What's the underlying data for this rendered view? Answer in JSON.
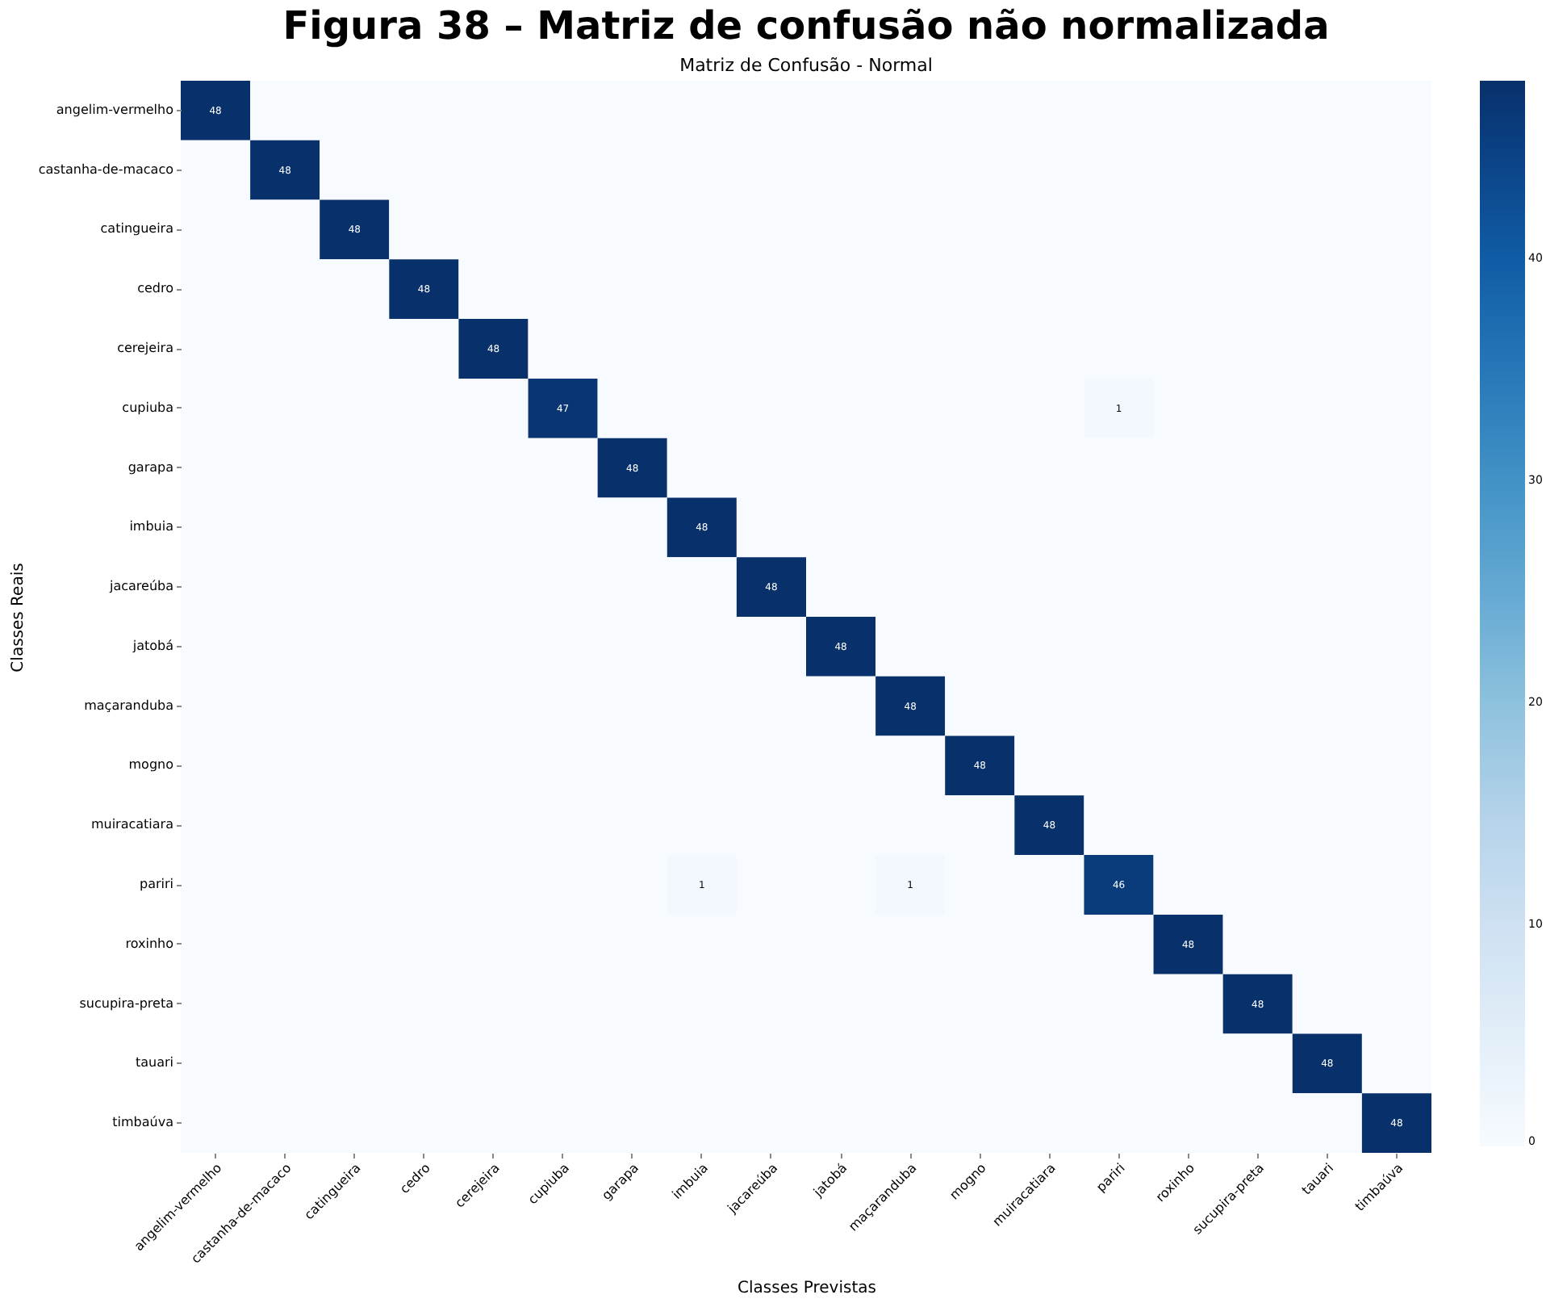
{
  "chart_data": {
    "type": "heatmap",
    "title": "Figura 38 – Matriz de confusão não normalizada",
    "subtitle": "Matriz de Confusão - Normal",
    "xlabel": "Classes Previstas",
    "ylabel": "Classes Reais",
    "categories": [
      "angelim-vermelho",
      "castanha-de-macaco",
      "catingueira",
      "cedro",
      "cerejeira",
      "cupiuba",
      "garapa",
      "imbuia",
      "jacareúba",
      "jatobá",
      "maçaranduba",
      "mogno",
      "muiracatiara",
      "pariri",
      "roxinho",
      "sucupira-preta",
      "tauari",
      "timbaúva"
    ],
    "y_categories": [
      "angelim-vermelho",
      "castanha-de-macaco",
      "catingueira",
      "cedro",
      "cerejeira",
      "cupiuba",
      "garapa",
      "imbuia",
      "jacareúba",
      "jatobá",
      "maçaranduba",
      "mogno",
      "muiracatiara",
      "pariri",
      "roxinho",
      "sucupira-preta",
      "tauari",
      "timbaúva"
    ],
    "cells": [
      [
        48,
        0,
        0,
        0,
        0,
        0,
        0,
        0,
        0,
        0,
        0,
        0,
        0,
        0,
        0,
        0,
        0,
        0
      ],
      [
        0,
        48,
        0,
        0,
        0,
        0,
        0,
        0,
        0,
        0,
        0,
        0,
        0,
        0,
        0,
        0,
        0,
        0
      ],
      [
        0,
        0,
        48,
        0,
        0,
        0,
        0,
        0,
        0,
        0,
        0,
        0,
        0,
        0,
        0,
        0,
        0,
        0
      ],
      [
        0,
        0,
        0,
        48,
        0,
        0,
        0,
        0,
        0,
        0,
        0,
        0,
        0,
        0,
        0,
        0,
        0,
        0
      ],
      [
        0,
        0,
        0,
        0,
        48,
        0,
        0,
        0,
        0,
        0,
        0,
        0,
        0,
        0,
        0,
        0,
        0,
        0
      ],
      [
        0,
        0,
        0,
        0,
        0,
        47,
        0,
        0,
        0,
        0,
        0,
        0,
        0,
        1,
        0,
        0,
        0,
        0
      ],
      [
        0,
        0,
        0,
        0,
        0,
        0,
        48,
        0,
        0,
        0,
        0,
        0,
        0,
        0,
        0,
        0,
        0,
        0
      ],
      [
        0,
        0,
        0,
        0,
        0,
        0,
        0,
        48,
        0,
        0,
        0,
        0,
        0,
        0,
        0,
        0,
        0,
        0
      ],
      [
        0,
        0,
        0,
        0,
        0,
        0,
        0,
        0,
        48,
        0,
        0,
        0,
        0,
        0,
        0,
        0,
        0,
        0
      ],
      [
        0,
        0,
        0,
        0,
        0,
        0,
        0,
        0,
        0,
        48,
        0,
        0,
        0,
        0,
        0,
        0,
        0,
        0
      ],
      [
        0,
        0,
        0,
        0,
        0,
        0,
        0,
        0,
        0,
        0,
        48,
        0,
        0,
        0,
        0,
        0,
        0,
        0
      ],
      [
        0,
        0,
        0,
        0,
        0,
        0,
        0,
        0,
        0,
        0,
        0,
        48,
        0,
        0,
        0,
        0,
        0,
        0
      ],
      [
        0,
        0,
        0,
        0,
        0,
        0,
        0,
        0,
        0,
        0,
        0,
        0,
        48,
        0,
        0,
        0,
        0,
        0
      ],
      [
        0,
        0,
        0,
        0,
        0,
        0,
        0,
        1,
        0,
        0,
        1,
        0,
        0,
        46,
        0,
        0,
        0,
        0
      ],
      [
        0,
        0,
        0,
        0,
        0,
        0,
        0,
        0,
        0,
        0,
        0,
        0,
        0,
        0,
        48,
        0,
        0,
        0
      ],
      [
        0,
        0,
        0,
        0,
        0,
        0,
        0,
        0,
        0,
        0,
        0,
        0,
        0,
        0,
        0,
        48,
        0,
        0
      ],
      [
        0,
        0,
        0,
        0,
        0,
        0,
        0,
        0,
        0,
        0,
        0,
        0,
        0,
        0,
        0,
        0,
        48,
        0
      ],
      [
        0,
        0,
        0,
        0,
        0,
        0,
        0,
        0,
        0,
        0,
        0,
        0,
        0,
        0,
        0,
        0,
        0,
        48
      ]
    ],
    "cell_labels": [
      [
        "48",
        null,
        null,
        null,
        null,
        null,
        null,
        null,
        null,
        null,
        null,
        null,
        null,
        null,
        null,
        null,
        null,
        null
      ],
      [
        null,
        "48",
        null,
        null,
        null,
        null,
        null,
        null,
        null,
        null,
        null,
        null,
        null,
        null,
        null,
        null,
        null,
        null
      ],
      [
        null,
        null,
        "48",
        null,
        null,
        null,
        null,
        null,
        null,
        null,
        null,
        null,
        null,
        null,
        null,
        null,
        null,
        null
      ],
      [
        null,
        null,
        null,
        "48",
        null,
        null,
        null,
        null,
        null,
        null,
        null,
        null,
        null,
        null,
        null,
        null,
        null,
        null
      ],
      [
        null,
        null,
        null,
        null,
        "48",
        null,
        null,
        null,
        null,
        null,
        null,
        null,
        null,
        null,
        null,
        null,
        null,
        null
      ],
      [
        null,
        null,
        null,
        null,
        null,
        "47",
        null,
        null,
        null,
        null,
        null,
        null,
        null,
        "1",
        null,
        null,
        null,
        null
      ],
      [
        null,
        null,
        null,
        null,
        null,
        null,
        "48",
        null,
        null,
        null,
        null,
        null,
        null,
        null,
        null,
        null,
        null,
        null
      ],
      [
        null,
        null,
        null,
        null,
        null,
        null,
        null,
        "48",
        null,
        null,
        null,
        null,
        null,
        null,
        null,
        null,
        null,
        null
      ],
      [
        null,
        null,
        null,
        null,
        null,
        null,
        null,
        null,
        "48",
        null,
        null,
        null,
        null,
        null,
        null,
        null,
        null,
        null
      ],
      [
        null,
        null,
        null,
        null,
        null,
        null,
        null,
        null,
        null,
        "48",
        null,
        null,
        null,
        null,
        null,
        null,
        null,
        null
      ],
      [
        null,
        null,
        null,
        null,
        null,
        null,
        null,
        null,
        null,
        null,
        "48",
        null,
        null,
        null,
        null,
        null,
        null,
        null
      ],
      [
        null,
        null,
        null,
        null,
        null,
        null,
        null,
        null,
        null,
        null,
        null,
        "48",
        null,
        null,
        null,
        null,
        null,
        null
      ],
      [
        null,
        null,
        null,
        null,
        null,
        null,
        null,
        null,
        null,
        null,
        null,
        null,
        "48",
        null,
        null,
        null,
        null,
        null
      ],
      [
        null,
        null,
        null,
        null,
        null,
        null,
        null,
        "1",
        null,
        null,
        "1",
        null,
        null,
        "46",
        null,
        null,
        null,
        null
      ],
      [
        null,
        null,
        null,
        null,
        null,
        null,
        null,
        null,
        null,
        null,
        null,
        null,
        null,
        null,
        "48",
        null,
        null,
        null
      ],
      [
        null,
        null,
        null,
        null,
        null,
        null,
        null,
        null,
        null,
        null,
        null,
        null,
        null,
        null,
        null,
        "48",
        null,
        null
      ],
      [
        null,
        null,
        null,
        null,
        null,
        null,
        null,
        null,
        null,
        null,
        null,
        null,
        null,
        null,
        null,
        null,
        "48",
        null
      ],
      [
        null,
        null,
        null,
        null,
        null,
        null,
        null,
        null,
        null,
        null,
        null,
        null,
        null,
        null,
        null,
        null,
        null,
        "48"
      ]
    ],
    "clim": [
      0,
      48
    ],
    "cticks": [
      0,
      10,
      20,
      30,
      40
    ]
  }
}
